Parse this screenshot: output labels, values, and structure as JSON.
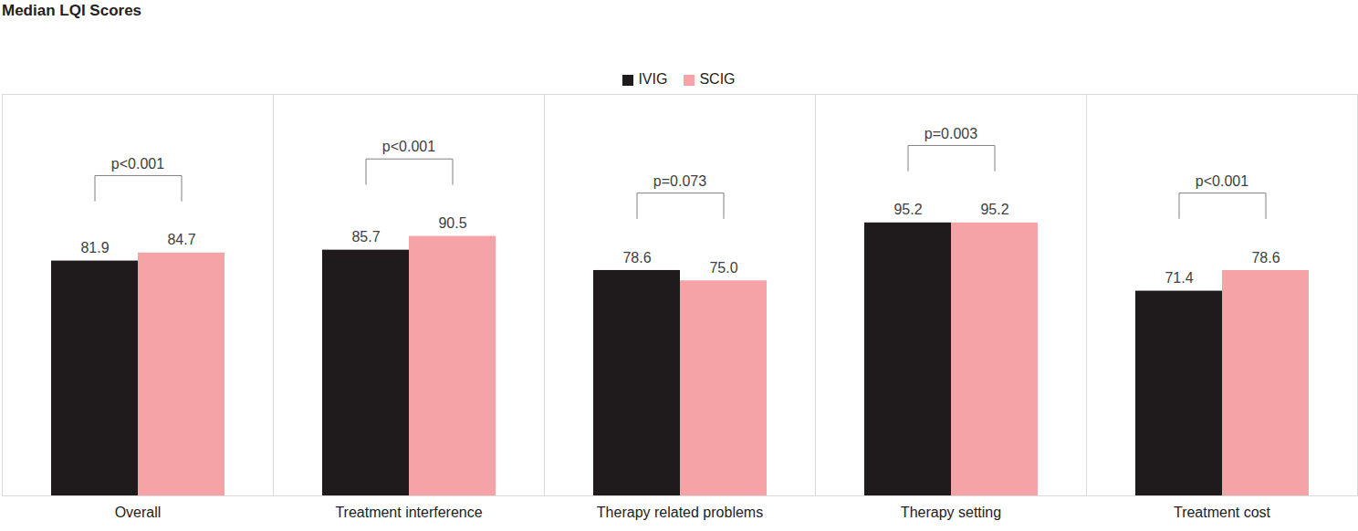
{
  "chart_data": {
    "type": "bar",
    "title": "Median LQI Scores",
    "categories": [
      "Overall",
      "Treatment interference",
      "Therapy related problems",
      "Therapy setting",
      "Treatment cost"
    ],
    "series": [
      {
        "name": "IVIG",
        "color": "#1f1b1c",
        "values": [
          81.9,
          85.7,
          78.6,
          95.2,
          71.4
        ],
        "value_labels": [
          "81.9",
          "85.7",
          "78.6",
          "95.2",
          "71.4"
        ]
      },
      {
        "name": "SCIG",
        "color": "#f5a3a7",
        "values": [
          84.7,
          90.5,
          75.0,
          95.2,
          78.6
        ],
        "value_labels": [
          "84.7",
          "90.5",
          "75.0",
          "95.2",
          "78.6"
        ]
      }
    ],
    "annotations": [
      "p<0.001",
      "p<0.001",
      "p=0.073",
      "p=0.003",
      "p<0.001"
    ],
    "ylim": [
      0,
      140
    ],
    "tick_labels": "x",
    "grid": false,
    "legend": "top",
    "data_labels": true
  }
}
